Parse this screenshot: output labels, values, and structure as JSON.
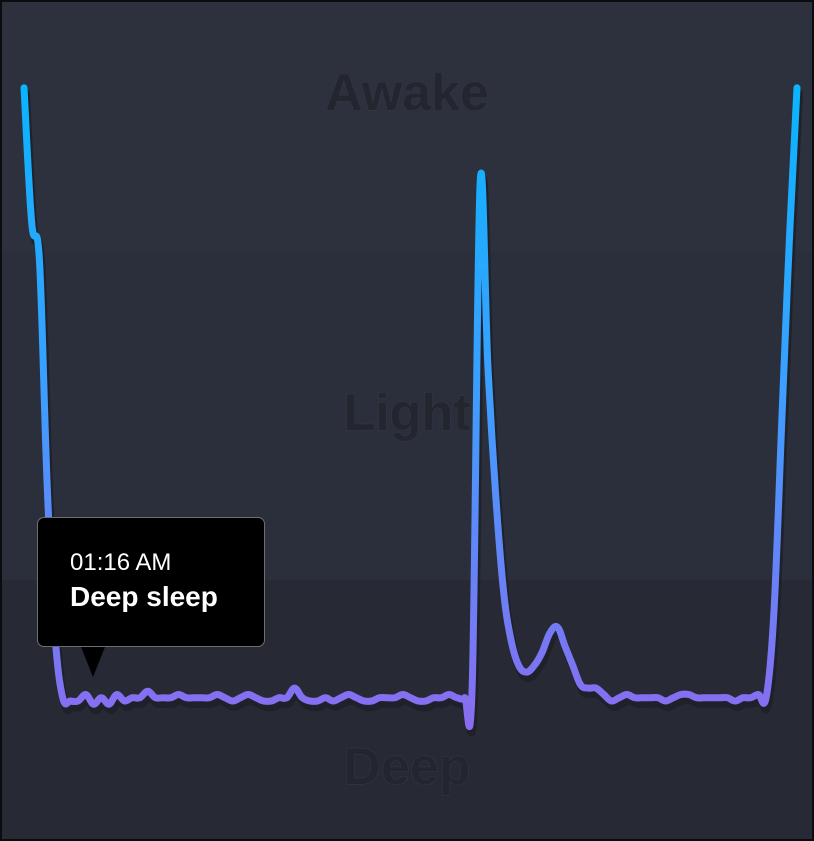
{
  "chart_data": {
    "type": "line",
    "title": "",
    "xlabel": "",
    "ylabel": "",
    "bands": [
      "Awake",
      "Light",
      "Deep"
    ],
    "ylim": [
      0,
      100
    ],
    "x": [
      0,
      1,
      2,
      3,
      4,
      5,
      6,
      7,
      8,
      9,
      10,
      11,
      12,
      13,
      14,
      15,
      16,
      17,
      18,
      19,
      20,
      21,
      22,
      23,
      24,
      25,
      26,
      27,
      28,
      29,
      30,
      31,
      32,
      33,
      34,
      35,
      36,
      37,
      38,
      39,
      40,
      41,
      42,
      43,
      44,
      45,
      46,
      47,
      48,
      49,
      50,
      51,
      52,
      53,
      54,
      55,
      56,
      57,
      58,
      59,
      60,
      61,
      62,
      63,
      64,
      65,
      66,
      67,
      68,
      69,
      70,
      71,
      72,
      73,
      74,
      75,
      76,
      77,
      78,
      79,
      80,
      81,
      82,
      83,
      84,
      85,
      86,
      87,
      88,
      89,
      90,
      91,
      92,
      93,
      94,
      95,
      96,
      97,
      98,
      99,
      100
    ],
    "series": [
      {
        "values": [
          98,
          77,
          71,
          36,
          13,
          3,
          2.5,
          2.5,
          3.5,
          2,
          3,
          2,
          3.5,
          2.5,
          3,
          3,
          4,
          3,
          3,
          3,
          3.5,
          3,
          3,
          3,
          3,
          3.5,
          3,
          2.5,
          3,
          3.5,
          3,
          2.5,
          2.5,
          3,
          3,
          4.5,
          3,
          2.5,
          2.5,
          3,
          2.5,
          3,
          3.5,
          3,
          2.5,
          2.5,
          3,
          3,
          3,
          3.5,
          3,
          2.5,
          2.5,
          3,
          3,
          3.5,
          3,
          3,
          5.5,
          83,
          55,
          35,
          20,
          12,
          8,
          7,
          8,
          10,
          13,
          14,
          11,
          8,
          5,
          4.5,
          4.5,
          3.5,
          2.5,
          3,
          3.5,
          3,
          3,
          3,
          3,
          2.5,
          3,
          3.5,
          3.5,
          3,
          3,
          3,
          3,
          3,
          2.5,
          3,
          3,
          3.5,
          3,
          16,
          45,
          74,
          98
        ],
        "color_start": "#0ab4ff",
        "color_end": "#8a6cf0"
      }
    ],
    "grid": false,
    "legend": "none"
  },
  "tooltip": {
    "time": "01:16 AM",
    "stage": "Deep sleep"
  },
  "colors": {
    "background": "#2b2f3c",
    "band_awake": "#2d313e",
    "band_light": "#2b2f3c",
    "band_deep": "#272a35"
  }
}
